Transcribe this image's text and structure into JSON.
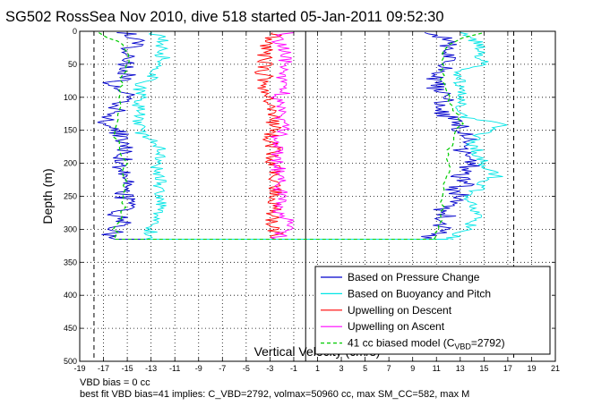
{
  "chart_data": {
    "type": "line",
    "title": "SG502 RossSea Nov 2010, dive 518 started 05-Jan-2011 09:52:30",
    "xlabel": "Vertical Velocity (cm/s)",
    "ylabel": "Depth (m)",
    "xlim": [
      -19,
      21
    ],
    "ylim": [
      500,
      0
    ],
    "y_reversed": true,
    "grid": true,
    "legend_position": "bottom-right",
    "x_ticks": [
      "-19",
      "-17",
      "-15",
      "-13",
      "-11",
      "-9",
      "-7",
      "-5",
      "-3",
      "-1",
      "1",
      "3",
      "5",
      "7",
      "9",
      "11",
      "13",
      "15",
      "17",
      "19",
      "21"
    ],
    "y_ticks": [
      "0",
      "50",
      "100",
      "150",
      "200",
      "250",
      "300",
      "350",
      "400",
      "450",
      "500"
    ],
    "reference_lines": [
      {
        "style": "dashed",
        "x": -17.8
      },
      {
        "style": "dashed",
        "x": 17.5
      },
      {
        "style": "solid",
        "x": 0
      }
    ],
    "series": [
      {
        "name": "Based on Pressure Change",
        "color": "#0000cc",
        "descent": {
          "depth": [
            2,
            10,
            20,
            30,
            40,
            50,
            60,
            70,
            80,
            90,
            100,
            110,
            120,
            130,
            140,
            150,
            160,
            170,
            180,
            190,
            200,
            210,
            220,
            230,
            240,
            250,
            260,
            270,
            280,
            290,
            300,
            310,
            315
          ],
          "velocity": [
            -15,
            -14.5,
            -14,
            -15,
            -14.5,
            -15.5,
            -15,
            -15,
            -16.5,
            -15,
            -15,
            -16,
            -16,
            -16.5,
            -17,
            -16,
            -15.5,
            -15.5,
            -15,
            -15.5,
            -15.2,
            -15.5,
            -15,
            -15.2,
            -15,
            -15.3,
            -15,
            -15.5,
            -16,
            -15,
            -16,
            -16.5,
            -16
          ]
        },
        "ascent": {
          "depth": [
            315,
            305,
            300,
            290,
            280,
            270,
            260,
            250,
            240,
            230,
            220,
            210,
            200,
            190,
            180,
            170,
            160,
            150,
            140,
            130,
            120,
            110,
            100,
            90,
            80,
            70,
            60,
            50,
            40,
            30,
            20,
            10,
            2
          ],
          "velocity": [
            10,
            11,
            11.5,
            11,
            12,
            11.5,
            12.5,
            13,
            12.5,
            13.5,
            13,
            13.5,
            14,
            13.5,
            13,
            13,
            14,
            13,
            13,
            12,
            11,
            11,
            12,
            11,
            11,
            11,
            11.5,
            11.5,
            12,
            11.5,
            12,
            12,
            10
          ]
        }
      },
      {
        "name": "Based on Buoyancy and Pitch",
        "color": "#00e5e5",
        "descent": {
          "depth": [
            2,
            10,
            20,
            30,
            40,
            50,
            60,
            70,
            80,
            90,
            100,
            110,
            120,
            130,
            140,
            150,
            160,
            170,
            180,
            190,
            200,
            210,
            220,
            230,
            240,
            250,
            260,
            270,
            280,
            290,
            300,
            310,
            315
          ],
          "velocity": [
            -13,
            -12,
            -12,
            -12.3,
            -12,
            -12.3,
            -12.5,
            -13,
            -14,
            -14,
            -14,
            -14,
            -14,
            -14,
            -14,
            -14,
            -13.5,
            -12.5,
            -12,
            -12.3,
            -12.5,
            -12.5,
            -12.3,
            -12.3,
            -12.3,
            -12.3,
            -12.3,
            -12.3,
            -12.3,
            -12.5,
            -13,
            -13,
            -13.5
          ]
        },
        "ascent": {
          "depth": [
            315,
            305,
            300,
            290,
            280,
            270,
            260,
            250,
            240,
            230,
            220,
            210,
            200,
            190,
            180,
            170,
            160,
            150,
            140,
            130,
            120,
            110,
            100,
            90,
            80,
            70,
            60,
            50,
            40,
            30,
            20,
            10,
            2
          ],
          "velocity": [
            12,
            13,
            14,
            14,
            14.5,
            14,
            14,
            13.5,
            14.5,
            15,
            16,
            15.5,
            15,
            14.5,
            14.5,
            14,
            14.5,
            15.5,
            17,
            13.5,
            13,
            13,
            13,
            13,
            13,
            13,
            13,
            15,
            14.5,
            14.5,
            14.5,
            14,
            13
          ]
        }
      },
      {
        "name": "Upwelling on Descent",
        "color": "#ff0000",
        "profile": {
          "depth": [
            2,
            10,
            20,
            30,
            40,
            50,
            60,
            70,
            80,
            90,
            100,
            110,
            120,
            130,
            140,
            150,
            160,
            170,
            180,
            190,
            200,
            210,
            220,
            230,
            240,
            250,
            260,
            270,
            280,
            290,
            300,
            310,
            315
          ],
          "velocity": [
            -2.5,
            -3,
            -3.2,
            -3.3,
            -3.5,
            -3.3,
            -3.8,
            -3.3,
            -3.8,
            -3.3,
            -3,
            -2.8,
            -2.5,
            -2.5,
            -2.8,
            -2.7,
            -3,
            -2.8,
            -2.6,
            -2.7,
            -2.8,
            -2.6,
            -2.8,
            -2.7,
            -2.6,
            -2.4,
            -2.7,
            -2.5,
            -2.8,
            -3,
            -2.6,
            -2.5,
            -2.5
          ]
        }
      },
      {
        "name": "Upwelling on Ascent",
        "color": "#ff00ff",
        "profile": {
          "depth": [
            2,
            10,
            20,
            30,
            40,
            50,
            60,
            70,
            80,
            90,
            100,
            110,
            120,
            130,
            140,
            150,
            160,
            170,
            180,
            190,
            200,
            210,
            220,
            230,
            240,
            250,
            260,
            270,
            280,
            290,
            300,
            310,
            315
          ],
          "velocity": [
            -1.5,
            -2.5,
            -2,
            -1.8,
            -1.9,
            -1.8,
            -2,
            -1.8,
            -1.5,
            -1.7,
            -2.2,
            -2,
            -2,
            -2.2,
            -2,
            -2,
            -2.3,
            -2.2,
            -2.3,
            -2.4,
            -2.2,
            -2.3,
            -2.2,
            -2.1,
            -2.3,
            -2,
            -2,
            -2.3,
            -1.8,
            -1.2,
            -1.8,
            -2,
            -2.5
          ]
        }
      },
      {
        "name": "41 cc biased model (C_VBD=2792)",
        "legend_label_parts": {
          "prefix": "41 cc biased model (C",
          "subscript": "VBD",
          "suffix": "=2792)"
        },
        "color": "#00cc00",
        "dashed": true,
        "descent": {
          "depth": [
            2,
            10,
            20,
            40,
            60,
            80,
            100,
            120,
            140,
            160,
            180,
            200,
            220,
            240,
            260,
            280,
            300,
            315
          ],
          "velocity": [
            -17.5,
            -16.5,
            -15.5,
            -15,
            -15.2,
            -15.5,
            -15.5,
            -15.7,
            -16,
            -16,
            -15.5,
            -15.2,
            -15.2,
            -15.3,
            -15.3,
            -15.5,
            -16,
            -16
          ]
        },
        "ascent": {
          "depth": [
            315,
            300,
            280,
            260,
            240,
            220,
            200,
            180,
            160,
            140,
            120,
            100,
            80,
            60,
            40,
            20,
            10,
            2
          ],
          "velocity": [
            11,
            11,
            11.5,
            11.5,
            11.5,
            12,
            12,
            12,
            12.5,
            13,
            12.5,
            12,
            11.5,
            11.5,
            11.5,
            12,
            13,
            15
          ]
        }
      }
    ]
  },
  "footer": {
    "line1": "VBD bias = 0 cc",
    "line2": "best fit VBD bias=41 implies: C_VBD=2792, volmax=50960 cc, max SM_CC=582, max M"
  }
}
